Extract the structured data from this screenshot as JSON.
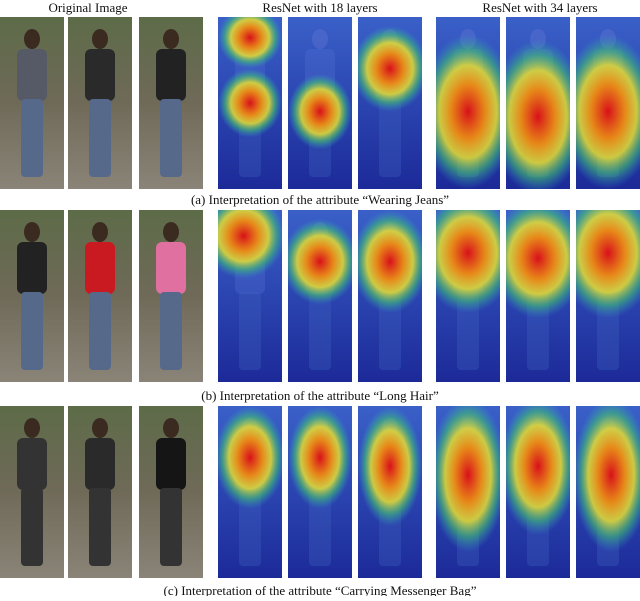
{
  "headers": [
    "Original Image",
    "ResNet with 18 layers",
    "ResNet with 34 layers"
  ],
  "captions": [
    "(a) Interpretation of the attribute “Wearing Jeans”",
    "(b) Interpretation of the attribute “Long Hair”",
    "(c) Interpretation of the attribute “Carrying Messenger Bag”"
  ]
}
